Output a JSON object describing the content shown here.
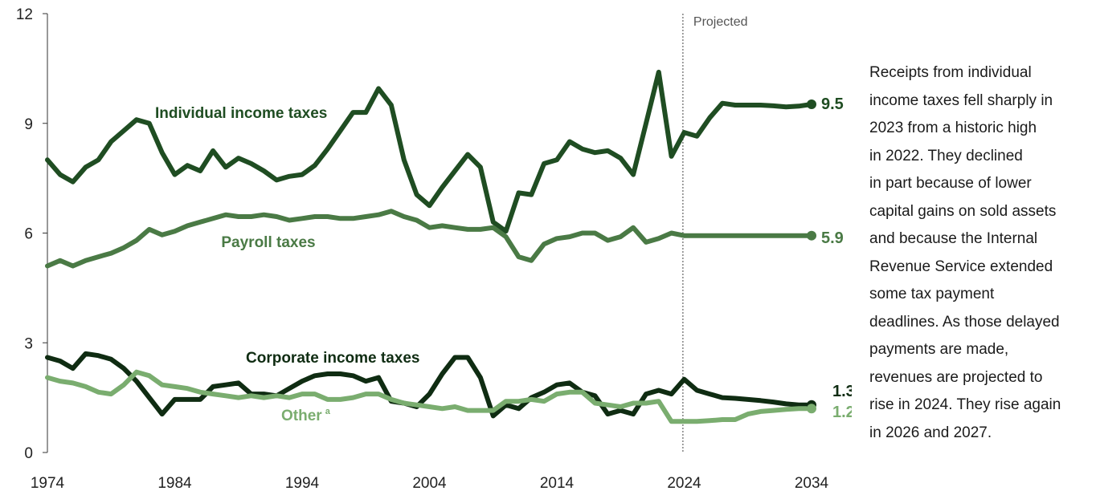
{
  "chart_data": {
    "type": "line",
    "title": "",
    "xlabel": "",
    "ylabel": "",
    "xlim": [
      1974,
      2034
    ],
    "ylim": [
      0,
      12
    ],
    "x_ticks": [
      "1974",
      "1984",
      "1994",
      "2004",
      "2014",
      "2024",
      "2034"
    ],
    "y_ticks": [
      "0",
      "3",
      "6",
      "9",
      "12"
    ],
    "projected_label": "Projected",
    "projected_from": 2023.9,
    "x": [
      1974,
      1975,
      1976,
      1977,
      1978,
      1979,
      1980,
      1981,
      1982,
      1983,
      1984,
      1985,
      1986,
      1987,
      1988,
      1989,
      1990,
      1991,
      1992,
      1993,
      1994,
      1995,
      1996,
      1997,
      1998,
      1999,
      2000,
      2001,
      2002,
      2003,
      2004,
      2005,
      2006,
      2007,
      2008,
      2009,
      2010,
      2011,
      2012,
      2013,
      2014,
      2015,
      2016,
      2017,
      2018,
      2019,
      2020,
      2021,
      2022,
      2023,
      2024,
      2025,
      2026,
      2027,
      2028,
      2029,
      2030,
      2031,
      2032,
      2033,
      2034
    ],
    "series": [
      {
        "name": "Individual income taxes",
        "color": "#1f4d22",
        "end_label": "9.5",
        "values": [
          8.0,
          7.6,
          7.4,
          7.8,
          8.0,
          8.5,
          8.8,
          9.1,
          9.0,
          8.2,
          7.6,
          7.85,
          7.7,
          8.25,
          7.8,
          8.05,
          7.9,
          7.7,
          7.45,
          7.55,
          7.6,
          7.85,
          8.3,
          8.8,
          9.3,
          9.3,
          9.95,
          9.5,
          8.0,
          7.05,
          6.75,
          7.25,
          7.7,
          8.15,
          7.8,
          6.3,
          6.05,
          7.1,
          7.05,
          7.9,
          8.0,
          8.5,
          8.3,
          8.2,
          8.25,
          8.05,
          7.6,
          9.0,
          10.4,
          8.1,
          8.75,
          8.65,
          9.15,
          9.55,
          9.5,
          9.5,
          9.5,
          9.48,
          9.45,
          9.47,
          9.52
        ]
      },
      {
        "name": "Payroll taxes",
        "color": "#4a7a45",
        "end_label": "5.9",
        "values": [
          5.1,
          5.25,
          5.1,
          5.25,
          5.35,
          5.45,
          5.6,
          5.8,
          6.1,
          5.95,
          6.05,
          6.2,
          6.3,
          6.4,
          6.5,
          6.45,
          6.45,
          6.5,
          6.45,
          6.35,
          6.4,
          6.45,
          6.45,
          6.4,
          6.4,
          6.45,
          6.5,
          6.6,
          6.45,
          6.35,
          6.15,
          6.2,
          6.15,
          6.1,
          6.1,
          6.15,
          5.9,
          5.35,
          5.25,
          5.7,
          5.85,
          5.9,
          6.0,
          6.0,
          5.8,
          5.9,
          6.15,
          5.75,
          5.85,
          6.0,
          5.93,
          5.93,
          5.93,
          5.93,
          5.93,
          5.93,
          5.93,
          5.93,
          5.93,
          5.93,
          5.93
        ]
      },
      {
        "name": "Corporate income taxes",
        "color": "#0f2c12",
        "end_label": "1.3",
        "values": [
          2.6,
          2.5,
          2.3,
          2.7,
          2.65,
          2.55,
          2.3,
          1.95,
          1.5,
          1.05,
          1.45,
          1.45,
          1.45,
          1.8,
          1.85,
          1.9,
          1.6,
          1.6,
          1.55,
          1.75,
          1.95,
          2.1,
          2.15,
          2.15,
          2.1,
          1.95,
          2.05,
          1.4,
          1.35,
          1.25,
          1.6,
          2.15,
          2.6,
          2.6,
          2.05,
          1.0,
          1.3,
          1.2,
          1.5,
          1.65,
          1.85,
          1.9,
          1.65,
          1.55,
          1.05,
          1.15,
          1.05,
          1.6,
          1.7,
          1.6,
          2.0,
          1.7,
          1.6,
          1.5,
          1.48,
          1.45,
          1.42,
          1.38,
          1.33,
          1.3,
          1.3
        ]
      },
      {
        "name": "Other",
        "name_superscript": "a",
        "color": "#7aad6f",
        "end_label": "1.2",
        "values": [
          2.05,
          1.95,
          1.9,
          1.8,
          1.65,
          1.6,
          1.85,
          2.2,
          2.1,
          1.85,
          1.8,
          1.75,
          1.65,
          1.6,
          1.55,
          1.5,
          1.55,
          1.5,
          1.55,
          1.5,
          1.6,
          1.6,
          1.45,
          1.45,
          1.5,
          1.6,
          1.6,
          1.45,
          1.35,
          1.3,
          1.25,
          1.2,
          1.25,
          1.15,
          1.15,
          1.15,
          1.4,
          1.4,
          1.45,
          1.4,
          1.6,
          1.65,
          1.65,
          1.35,
          1.3,
          1.25,
          1.35,
          1.35,
          1.4,
          0.85,
          0.85,
          0.85,
          0.87,
          0.9,
          0.9,
          1.05,
          1.12,
          1.15,
          1.18,
          1.2,
          1.2
        ]
      }
    ],
    "series_labels": [
      {
        "text": "Individual income taxes",
        "color": "#1f4d22"
      },
      {
        "text": "Payroll taxes",
        "color": "#4a7a45"
      },
      {
        "text": "Corporate income taxes",
        "color": "#0f2c12"
      },
      {
        "text": "Other",
        "superscript": "a",
        "color": "#7aad6f"
      }
    ]
  },
  "annotation": "Receipts from individual\nincome taxes fell sharply in\n2023 from a  historic high\nin 2022. They declined\nin part because of lower\ncapital gains on sold assets\nand because the Internal\nRevenue Service extended\nsome tax payment\ndeadlines. As those delayed\npayments are made,\nrevenues are projected to\nrise in 2024. They rise again\nin 2026 and 2027."
}
